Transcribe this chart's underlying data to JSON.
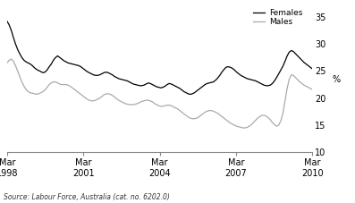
{
  "title": "",
  "ylabel": "%",
  "source": "Source: Labour Force, Australia (cat. no. 6202.0)",
  "legend_females": "Females",
  "legend_males": "Males",
  "females_color": "#000000",
  "males_color": "#aaaaaa",
  "ylim": [
    10,
    37
  ],
  "yticks": [
    10,
    15,
    20,
    25,
    30,
    35
  ],
  "background_color": "#ffffff",
  "x_tick_labels": [
    "Mar\n1998",
    "Mar\n2001",
    "Mar\n2004",
    "Mar\n2007",
    "Mar\n2010"
  ],
  "x_tick_positions": [
    0,
    36,
    72,
    108,
    144
  ],
  "females_data": [
    34.2,
    33.5,
    32.5,
    31.2,
    30.0,
    29.0,
    28.2,
    27.5,
    27.0,
    26.7,
    26.5,
    26.3,
    26.0,
    25.6,
    25.3,
    25.1,
    24.9,
    24.7,
    24.8,
    25.2,
    25.8,
    26.3,
    27.0,
    27.5,
    27.8,
    27.5,
    27.2,
    26.9,
    26.7,
    26.5,
    26.4,
    26.3,
    26.2,
    26.1,
    26.0,
    25.8,
    25.5,
    25.2,
    24.9,
    24.7,
    24.5,
    24.3,
    24.2,
    24.2,
    24.3,
    24.5,
    24.7,
    24.8,
    24.7,
    24.5,
    24.3,
    24.0,
    23.8,
    23.6,
    23.5,
    23.4,
    23.3,
    23.2,
    23.0,
    22.8,
    22.6,
    22.5,
    22.4,
    22.3,
    22.3,
    22.4,
    22.6,
    22.8,
    22.7,
    22.5,
    22.3,
    22.1,
    22.0,
    21.9,
    22.0,
    22.2,
    22.5,
    22.7,
    22.6,
    22.4,
    22.2,
    22.0,
    21.8,
    21.5,
    21.2,
    21.0,
    20.8,
    20.7,
    20.8,
    21.0,
    21.3,
    21.6,
    21.9,
    22.2,
    22.5,
    22.7,
    22.8,
    22.9,
    23.0,
    23.3,
    23.7,
    24.2,
    24.8,
    25.3,
    25.7,
    25.8,
    25.7,
    25.5,
    25.2,
    24.8,
    24.5,
    24.2,
    24.0,
    23.8,
    23.6,
    23.5,
    23.4,
    23.3,
    23.2,
    23.0,
    22.8,
    22.6,
    22.4,
    22.3,
    22.3,
    22.4,
    22.7,
    23.2,
    23.8,
    24.5,
    25.2,
    25.9,
    26.8,
    27.8,
    28.5,
    28.8,
    28.6,
    28.2,
    27.8,
    27.4,
    27.0,
    26.6,
    26.3,
    26.0,
    25.7,
    25.4
  ],
  "males_data": [
    26.5,
    27.0,
    27.2,
    26.8,
    26.0,
    25.0,
    24.0,
    23.0,
    22.2,
    21.6,
    21.2,
    21.0,
    20.9,
    20.8,
    20.7,
    20.8,
    21.0,
    21.2,
    21.5,
    22.0,
    22.5,
    22.8,
    23.0,
    23.0,
    22.8,
    22.6,
    22.5,
    22.5,
    22.5,
    22.4,
    22.2,
    21.9,
    21.6,
    21.3,
    21.0,
    20.7,
    20.4,
    20.1,
    19.8,
    19.6,
    19.5,
    19.5,
    19.6,
    19.8,
    20.0,
    20.3,
    20.6,
    20.8,
    20.8,
    20.7,
    20.5,
    20.2,
    19.9,
    19.6,
    19.4,
    19.2,
    19.0,
    18.9,
    18.8,
    18.8,
    18.8,
    18.9,
    19.0,
    19.2,
    19.4,
    19.5,
    19.6,
    19.6,
    19.5,
    19.3,
    19.0,
    18.8,
    18.6,
    18.5,
    18.5,
    18.6,
    18.7,
    18.7,
    18.6,
    18.4,
    18.2,
    18.0,
    17.7,
    17.4,
    17.1,
    16.8,
    16.5,
    16.3,
    16.2,
    16.2,
    16.3,
    16.5,
    16.8,
    17.1,
    17.4,
    17.6,
    17.7,
    17.7,
    17.6,
    17.4,
    17.2,
    16.9,
    16.6,
    16.3,
    16.0,
    15.7,
    15.4,
    15.2,
    15.0,
    14.8,
    14.7,
    14.6,
    14.5,
    14.5,
    14.6,
    14.8,
    15.1,
    15.5,
    15.9,
    16.3,
    16.6,
    16.8,
    16.8,
    16.7,
    16.4,
    16.0,
    15.5,
    15.1,
    14.8,
    15.0,
    15.8,
    17.2,
    19.5,
    21.8,
    23.5,
    24.3,
    24.2,
    23.8,
    23.4,
    23.0,
    22.7,
    22.4,
    22.2,
    22.0,
    21.8,
    21.6
  ]
}
